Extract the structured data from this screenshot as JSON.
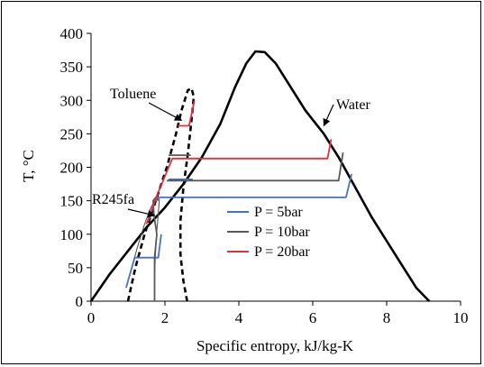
{
  "chart_data": {
    "type": "line",
    "title": "",
    "xlabel": "Specific entropy, kJ/kg-K",
    "ylabel": "T, °C",
    "xlim": [
      0,
      10
    ],
    "ylim": [
      0,
      400
    ],
    "xticks": [
      0,
      2,
      4,
      6,
      8,
      10
    ],
    "yticks": [
      0,
      50,
      100,
      150,
      200,
      250,
      300,
      350,
      400
    ],
    "grid": false,
    "legend_position": "center",
    "colors": {
      "p5": "#4472c4",
      "p10": "#595959",
      "p20": "#e0303c",
      "dome": "#000000"
    },
    "legend": [
      {
        "name": "P = 5bar",
        "color_key": "p5"
      },
      {
        "name": "P = 10bar",
        "color_key": "p10"
      },
      {
        "name": "P = 20bar",
        "color_key": "p20"
      }
    ],
    "annotations": [
      {
        "text": "Toluene",
        "target": [
          2.45,
          270
        ]
      },
      {
        "text": "Water",
        "target": [
          6.3,
          262
        ]
      },
      {
        "text": "R245fa",
        "target": [
          1.72,
          128
        ]
      }
    ],
    "domes": [
      {
        "fluid": "Water",
        "style": "solid",
        "points": [
          [
            0,
            0
          ],
          [
            0.5,
            40
          ],
          [
            1,
            75
          ],
          [
            1.5,
            110
          ],
          [
            2,
            140
          ],
          [
            2.5,
            175
          ],
          [
            3,
            215
          ],
          [
            3.5,
            265
          ],
          [
            3.9,
            320
          ],
          [
            4.2,
            355
          ],
          [
            4.45,
            373
          ],
          [
            4.7,
            372
          ],
          [
            5.0,
            355
          ],
          [
            5.4,
            320
          ],
          [
            5.8,
            285
          ],
          [
            6.3,
            250
          ],
          [
            6.7,
            215
          ],
          [
            7.0,
            185
          ],
          [
            7.3,
            155
          ],
          [
            7.6,
            125
          ],
          [
            8.0,
            90
          ],
          [
            8.4,
            55
          ],
          [
            8.8,
            20
          ],
          [
            9.15,
            0
          ]
        ]
      },
      {
        "fluid": "Toluene",
        "style": "dashed",
        "points": [
          [
            1.0,
            0
          ],
          [
            1.2,
            50
          ],
          [
            1.45,
            100
          ],
          [
            1.75,
            150
          ],
          [
            2.05,
            200
          ],
          [
            2.3,
            250
          ],
          [
            2.45,
            285
          ],
          [
            2.62,
            315
          ],
          [
            2.72,
            318
          ],
          [
            2.78,
            305
          ],
          [
            2.72,
            270
          ],
          [
            2.62,
            220
          ],
          [
            2.5,
            170
          ],
          [
            2.42,
            120
          ],
          [
            2.42,
            70
          ],
          [
            2.5,
            30
          ],
          [
            2.6,
            0
          ]
        ]
      },
      {
        "fluid": "R245fa",
        "style": "solid-thin",
        "points": [
          [
            1.05,
            40
          ],
          [
            1.25,
            80
          ],
          [
            1.45,
            115
          ],
          [
            1.62,
            140
          ],
          [
            1.78,
            155
          ],
          [
            1.85,
            152
          ],
          [
            1.82,
            130
          ],
          [
            1.78,
            105
          ],
          [
            1.75,
            80
          ],
          [
            1.72,
            40
          ]
        ]
      }
    ],
    "series": [
      {
        "name": "P = 5bar",
        "color_key": "p5",
        "segments": [
          [
            [
              0.95,
              20
            ],
            [
              1.18,
              65
            ],
            [
              1.82,
              65
            ],
            [
              1.9,
              100
            ]
          ],
          [
            [
              1.55,
              120
            ],
            [
              1.75,
              155
            ],
            [
              6.9,
              155
            ],
            [
              7.05,
              190
            ]
          ],
          [
            [
              2.1,
              182
            ],
            [
              2.75,
              182
            ]
          ]
        ]
      },
      {
        "name": "P = 10bar",
        "color_key": "p10",
        "segments": [
          [
            [
              1.72,
              0
            ],
            [
              1.72,
              65
            ],
            [
              1.78,
              100
            ],
            [
              1.7,
              130
            ],
            [
              1.68,
              150
            ],
            [
              1.75,
              155
            ],
            [
              1.82,
              150
            ]
          ],
          [
            [
              2.05,
              180
            ],
            [
              6.7,
              180
            ],
            [
              6.82,
              222
            ]
          ],
          [
            [
              2.1,
              218
            ],
            [
              2.7,
              218
            ]
          ]
        ]
      },
      {
        "name": "P = 20bar",
        "color_key": "p20",
        "segments": [
          [
            [
              1.5,
              115
            ],
            [
              1.8,
              160
            ],
            [
              2.2,
              213
            ],
            [
              6.4,
              213
            ],
            [
              6.5,
              242
            ]
          ],
          [
            [
              2.35,
              262
            ],
            [
              2.65,
              262
            ],
            [
              2.8,
              300
            ]
          ]
        ]
      }
    ]
  }
}
